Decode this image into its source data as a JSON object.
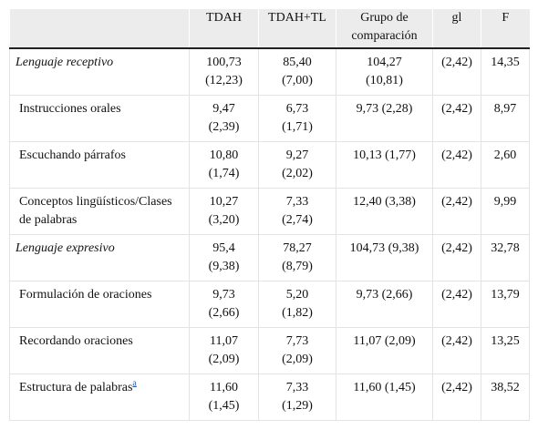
{
  "table": {
    "columns": [
      "TDAH",
      "TDAH+TL",
      "Grupo de comparación",
      "gl",
      "F"
    ],
    "rows": [
      {
        "label": "Lenguaje receptivo",
        "italic": true,
        "cells": [
          [
            "100,73",
            "(12,23)"
          ],
          [
            "85,40",
            "(7,00)"
          ],
          [
            "104,27",
            "(10,81)"
          ],
          [
            "(2,42)"
          ],
          [
            "14,35"
          ]
        ]
      },
      {
        "label": "Instrucciones orales",
        "cells": [
          [
            "9,47",
            "(2,39)"
          ],
          [
            "6,73",
            "(1,71)"
          ],
          [
            "9,73 (2,28)"
          ],
          [
            "(2,42)"
          ],
          [
            "8,97"
          ]
        ]
      },
      {
        "label": "Escuchando párrafos",
        "cells": [
          [
            "10,80",
            "(1,74)"
          ],
          [
            "9,27",
            "(2,02)"
          ],
          [
            "10,13 (1,77)"
          ],
          [
            "(2,42)"
          ],
          [
            "2,60"
          ]
        ]
      },
      {
        "label": "Conceptos lingüísticos/Clases de palabras",
        "cells": [
          [
            "10,27",
            "(3,20)"
          ],
          [
            "7,33",
            "(2,74)"
          ],
          [
            "12,40 (3,38)"
          ],
          [
            "(2,42)"
          ],
          [
            "9,99"
          ]
        ]
      },
      {
        "label": "Lenguaje expresivo",
        "italic": true,
        "cells": [
          [
            "95,4",
            "(9,38)"
          ],
          [
            "78,27",
            "(8,79)"
          ],
          [
            "104,73 (9,38)"
          ],
          [
            "(2,42)"
          ],
          [
            "32,78"
          ]
        ]
      },
      {
        "label": "Formulación de oraciones",
        "cells": [
          [
            "9,73",
            "(2,66)"
          ],
          [
            "5,20",
            "(1,82)"
          ],
          [
            "9,73 (2,66)"
          ],
          [
            "(2,42)"
          ],
          [
            "13,79"
          ]
        ]
      },
      {
        "label": "Recordando oraciones",
        "cells": [
          [
            "11,07",
            "(2,09)"
          ],
          [
            "7,73",
            "(2,09)"
          ],
          [
            "11,07 (2,09)"
          ],
          [
            "(2,42)"
          ],
          [
            "13,25"
          ]
        ]
      },
      {
        "label": "Estructura de palabras",
        "footnote": "a",
        "cells": [
          [
            "11,60",
            "(1,45)"
          ],
          [
            "7,33",
            "(1,29)"
          ],
          [
            "11,60 (1,45)"
          ],
          [
            "(2,42)"
          ],
          [
            "38,52"
          ]
        ]
      }
    ]
  }
}
